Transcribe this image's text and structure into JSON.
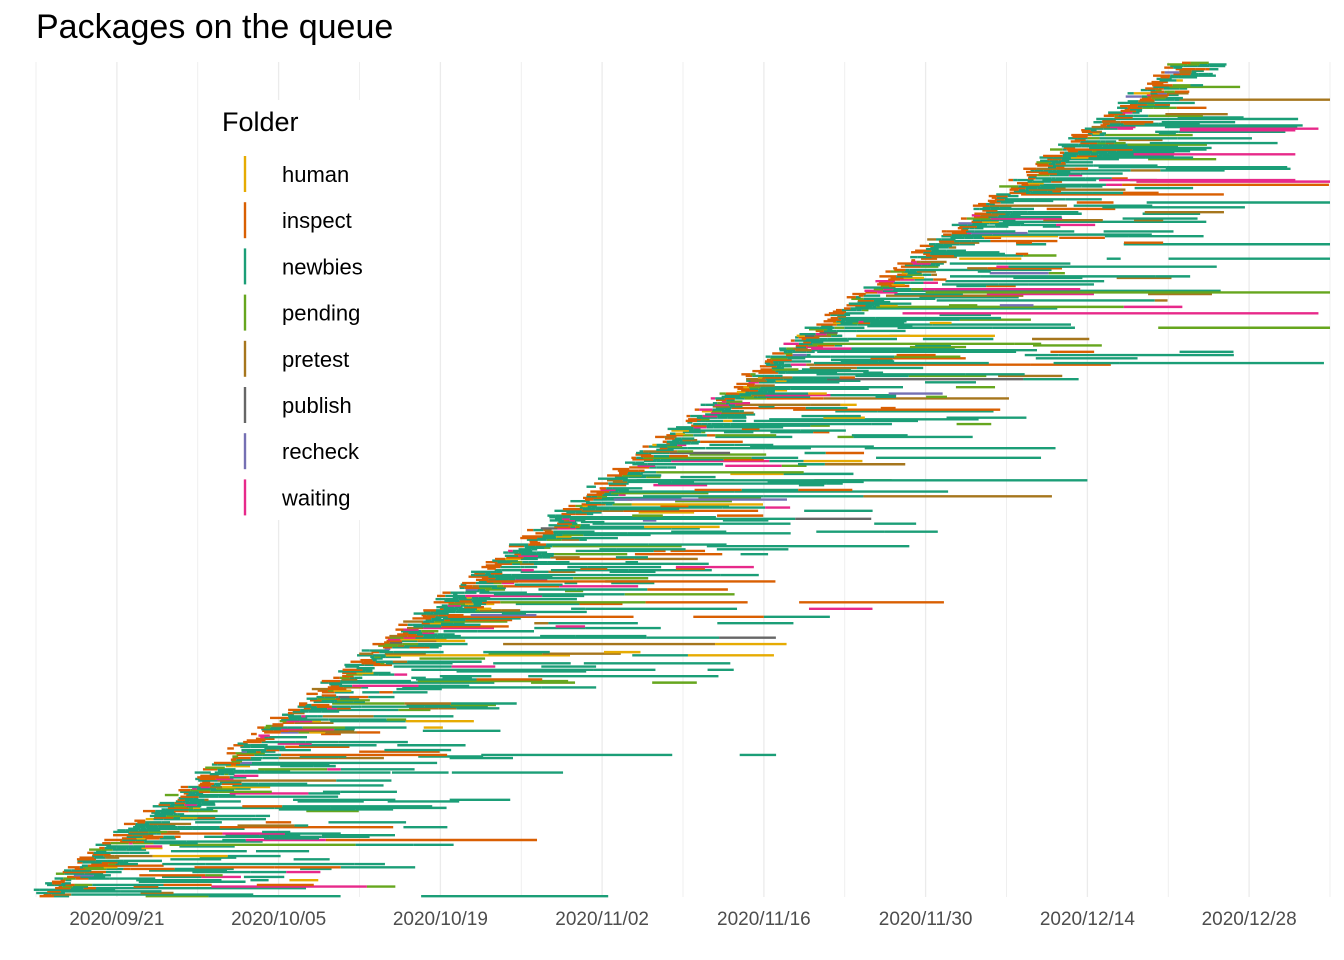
{
  "chart_data": {
    "type": "gantt",
    "title": "Packages on the queue",
    "xlabel": "",
    "ylabel": "",
    "x_axis": {
      "type": "date",
      "range": [
        "2020-09-14",
        "2021-01-04"
      ],
      "tick_labels": [
        "2020/09/21",
        "2020/10/05",
        "2020/10/19",
        "2020/11/02",
        "2020/11/16",
        "2020/11/30",
        "2020/12/14",
        "2020/12/28"
      ],
      "tick_dates": [
        "2020-09-21",
        "2020-10-05",
        "2020-10-19",
        "2020-11-02",
        "2020-11-16",
        "2020-11-30",
        "2020-12-14",
        "2020-12-28"
      ]
    },
    "grid": "vertical",
    "legend": {
      "title": "Folder",
      "placement": "top-left inside plot",
      "entries": [
        {
          "name": "human",
          "color": "#E6AB02"
        },
        {
          "name": "inspect",
          "color": "#D95F02"
        },
        {
          "name": "newbies",
          "color": "#1B9E77"
        },
        {
          "name": "pending",
          "color": "#66A61E"
        },
        {
          "name": "pretest",
          "color": "#A6761D"
        },
        {
          "name": "publish",
          "color": "#666666"
        },
        {
          "name": "recheck",
          "color": "#7570B3"
        },
        {
          "name": "waiting",
          "color": "#E7298A"
        }
      ]
    },
    "queue": {
      "first_entry": "2020-09-14",
      "last_entry": "2020-12-22",
      "snapshot_end": "2020-12-22"
    },
    "notable_spans": [
      {
        "folder": "waiting",
        "start": "2020-12-22",
        "end": "2021-01-01"
      },
      {
        "folder": "waiting",
        "start": "2020-12-22",
        "end": "2021-01-03"
      },
      {
        "folder": "waiting",
        "start": "2020-11-28",
        "end": "2021-01-03"
      },
      {
        "folder": "waiting",
        "start": "2020-12-15",
        "end": "2021-01-01"
      },
      {
        "folder": "waiting",
        "start": "2020-12-18",
        "end": "2021-01-01"
      },
      {
        "folder": "pending",
        "start": "2020-11-30",
        "end": "2021-01-04"
      },
      {
        "folder": "recheck",
        "start": "2020-11-03",
        "end": "2020-11-18"
      },
      {
        "folder": "human",
        "start": "2020-11-24",
        "end": "2020-12-06"
      },
      {
        "folder": "inspect",
        "start": "2020-10-23",
        "end": "2020-11-17"
      },
      {
        "folder": "newbies",
        "start": "2020-11-05",
        "end": "2020-12-14"
      }
    ]
  }
}
